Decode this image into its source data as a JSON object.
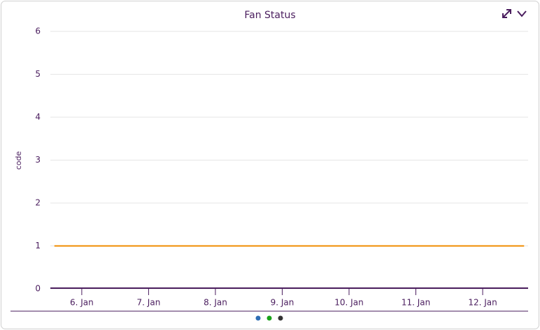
{
  "chart_data": {
    "type": "line",
    "title": "Fan Status",
    "y_label": "code",
    "series": [
      {
        "color": "#f08c00",
        "x": [
          5.59,
          12.62
        ],
        "values": [
          1,
          1
        ]
      }
    ],
    "xlim": [
      5.53,
      12.68
    ],
    "xticks": [
      {
        "value": 6,
        "label": "6. Jan"
      },
      {
        "value": 7,
        "label": "7. Jan"
      },
      {
        "value": 8,
        "label": "8. Jan"
      },
      {
        "value": 9,
        "label": "9. Jan"
      },
      {
        "value": 10,
        "label": "10. Jan"
      },
      {
        "value": 11,
        "label": "11. Jan"
      },
      {
        "value": 12,
        "label": "12. Jan"
      }
    ],
    "ylim": [
      0,
      6
    ],
    "yticks": [
      0,
      1,
      2,
      3,
      4,
      5,
      6
    ],
    "grid": true
  }
}
